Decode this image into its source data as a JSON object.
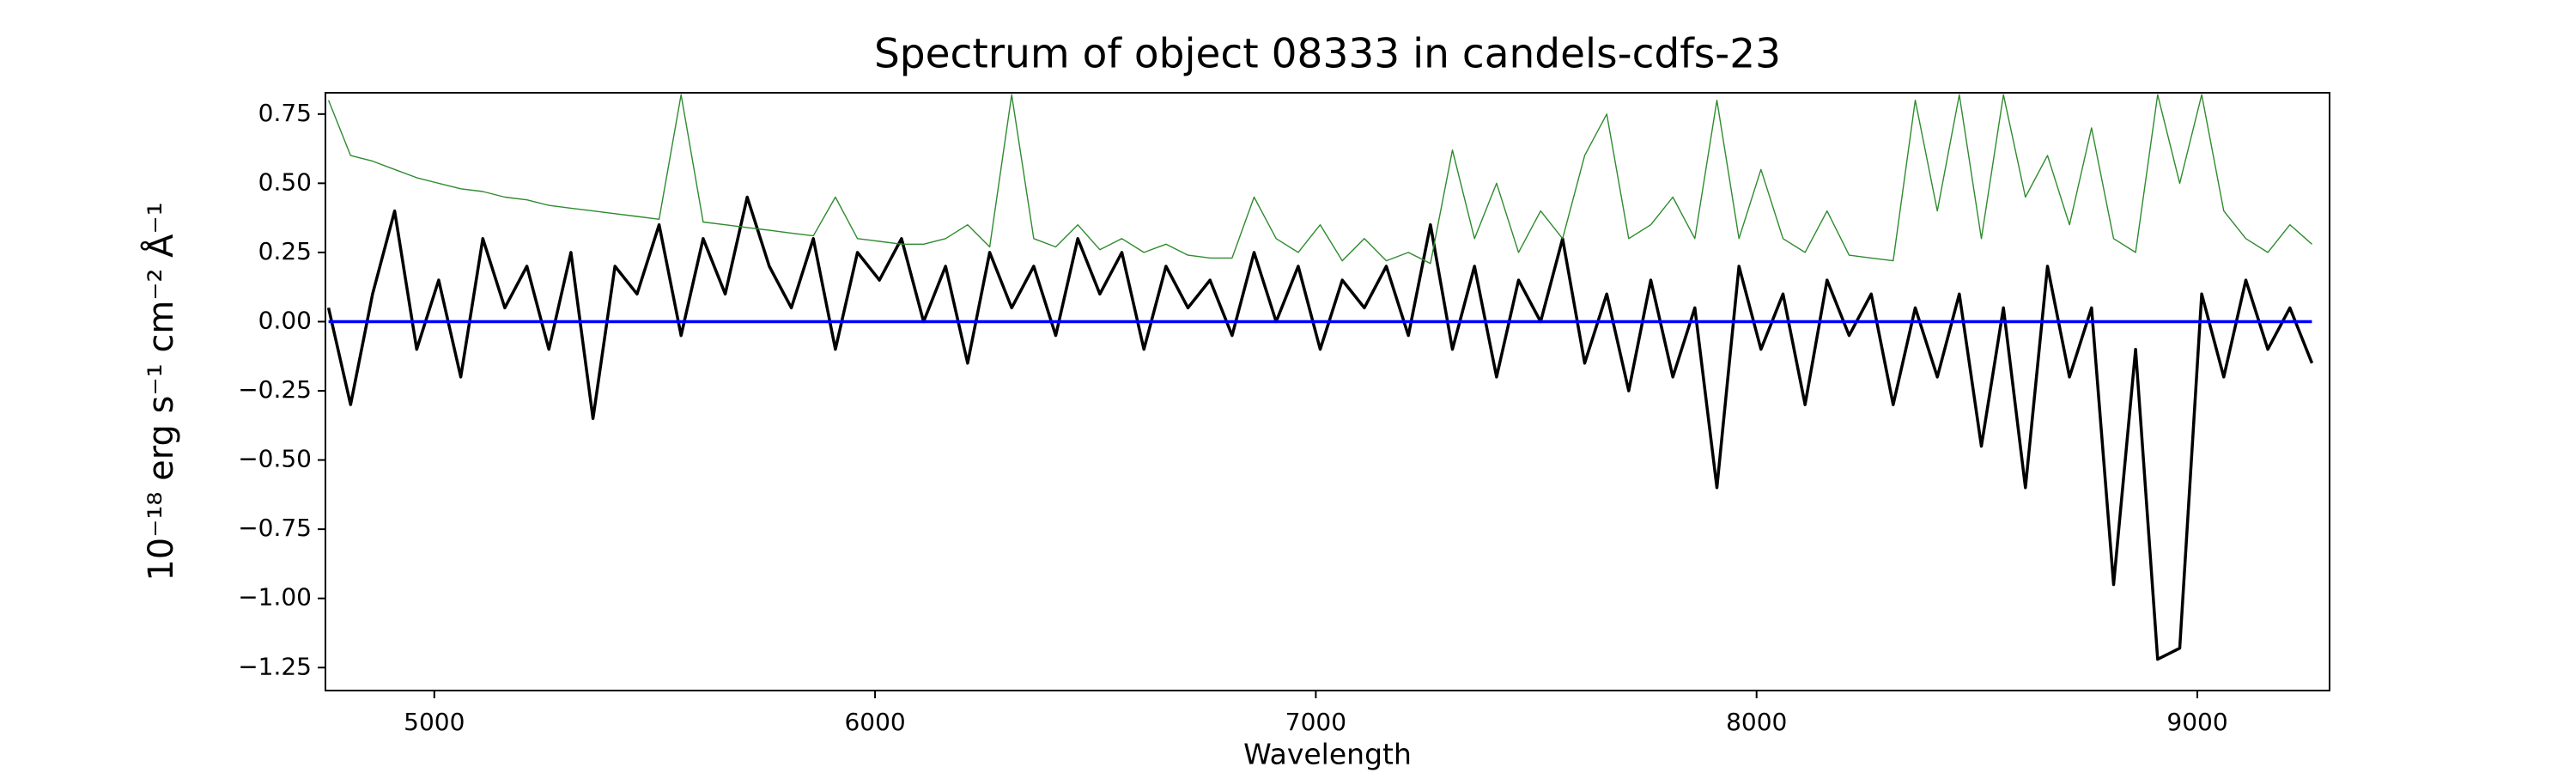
{
  "chart_data": {
    "type": "line",
    "title": "Spectrum of object 08333 in candels-cdfs-23",
    "xlabel": "Wavelength",
    "ylabel": "10⁻¹⁸ erg s⁻¹ cm⁻² Å⁻¹",
    "x": [
      4760,
      4810,
      4860,
      4910,
      4960,
      5010,
      5060,
      5110,
      5160,
      5210,
      5260,
      5310,
      5360,
      5410,
      5460,
      5510,
      5560,
      5610,
      5660,
      5710,
      5760,
      5810,
      5860,
      5910,
      5960,
      6010,
      6060,
      6110,
      6160,
      6210,
      6260,
      6310,
      6360,
      6410,
      6460,
      6510,
      6560,
      6610,
      6660,
      6710,
      6760,
      6810,
      6860,
      6910,
      6960,
      7010,
      7060,
      7110,
      7160,
      7210,
      7260,
      7310,
      7360,
      7410,
      7460,
      7510,
      7560,
      7610,
      7660,
      7710,
      7760,
      7810,
      7860,
      7910,
      7960,
      8010,
      8060,
      8110,
      8160,
      8210,
      8260,
      8310,
      8360,
      8410,
      8460,
      8510,
      8560,
      8610,
      8660,
      8710,
      8760,
      8810,
      8860,
      8910,
      8960,
      9010,
      9060,
      9110,
      9160,
      9210,
      9260
    ],
    "series": [
      {
        "color": "#000000",
        "values": [
          0.05,
          -0.3,
          0.1,
          0.4,
          -0.1,
          0.15,
          -0.2,
          0.3,
          0.05,
          0.2,
          -0.1,
          0.25,
          -0.35,
          0.2,
          0.1,
          0.35,
          -0.05,
          0.3,
          0.1,
          0.45,
          0.2,
          0.05,
          0.3,
          -0.1,
          0.25,
          0.15,
          0.3,
          0.0,
          0.2,
          -0.15,
          0.25,
          0.05,
          0.2,
          -0.05,
          0.3,
          0.1,
          0.25,
          -0.1,
          0.2,
          0.05,
          0.15,
          -0.05,
          0.25,
          0.0,
          0.2,
          -0.1,
          0.15,
          0.05,
          0.2,
          -0.05,
          0.35,
          -0.1,
          0.2,
          -0.2,
          0.15,
          0.0,
          0.3,
          -0.15,
          0.1,
          -0.25,
          0.15,
          -0.2,
          0.05,
          -0.6,
          0.2,
          -0.1,
          0.1,
          -0.3,
          0.15,
          -0.05,
          0.1,
          -0.3,
          0.05,
          -0.2,
          0.1,
          -0.45,
          0.05,
          -0.6,
          0.2,
          -0.2,
          0.05,
          -0.95,
          -0.1,
          -1.22,
          -1.18,
          0.1,
          -0.2,
          0.15,
          -0.1,
          0.05,
          -0.15
        ]
      },
      {
        "color": "#2e8b2e",
        "values": [
          0.8,
          0.6,
          0.58,
          0.55,
          0.52,
          0.5,
          0.48,
          0.47,
          0.45,
          0.44,
          0.42,
          0.41,
          0.4,
          0.39,
          0.38,
          0.37,
          0.82,
          0.36,
          0.35,
          0.34,
          0.33,
          0.32,
          0.31,
          0.45,
          0.3,
          0.29,
          0.28,
          0.28,
          0.3,
          0.35,
          0.27,
          0.82,
          0.3,
          0.27,
          0.35,
          0.26,
          0.3,
          0.25,
          0.28,
          0.24,
          0.23,
          0.23,
          0.45,
          0.3,
          0.25,
          0.35,
          0.22,
          0.3,
          0.22,
          0.25,
          0.21,
          0.62,
          0.3,
          0.5,
          0.25,
          0.4,
          0.3,
          0.6,
          0.75,
          0.3,
          0.35,
          0.45,
          0.3,
          0.8,
          0.3,
          0.55,
          0.3,
          0.25,
          0.4,
          0.24,
          0.23,
          0.22,
          0.8,
          0.4,
          0.82,
          0.3,
          0.82,
          0.45,
          0.6,
          0.35,
          0.7,
          0.3,
          0.25,
          0.82,
          0.5,
          0.82,
          0.4,
          0.3,
          0.25,
          0.35,
          0.28
        ]
      },
      {
        "color": "#0000ff",
        "values": [
          0,
          0,
          0,
          0,
          0,
          0,
          0,
          0,
          0,
          0,
          0,
          0,
          0,
          0,
          0,
          0,
          0,
          0,
          0,
          0,
          0,
          0,
          0,
          0,
          0,
          0,
          0,
          0,
          0,
          0,
          0,
          0,
          0,
          0,
          0,
          0,
          0,
          0,
          0,
          0,
          0,
          0,
          0,
          0,
          0,
          0,
          0,
          0,
          0,
          0,
          0,
          0,
          0,
          0,
          0,
          0,
          0,
          0,
          0,
          0,
          0,
          0,
          0,
          0,
          0,
          0,
          0,
          0,
          0,
          0,
          0,
          0,
          0,
          0,
          0,
          0,
          0,
          0,
          0,
          0,
          0,
          0,
          0,
          0,
          0,
          0,
          0,
          0,
          0,
          0,
          0
        ]
      }
    ],
    "xlim": [
      4753,
      9300
    ],
    "ylim": [
      -1.333,
      0.827
    ],
    "xticks": [
      5000,
      6000,
      7000,
      8000,
      9000
    ],
    "yticks": [
      {
        "value": 0.75,
        "label": "0.75"
      },
      {
        "value": 0.5,
        "label": "0.50"
      },
      {
        "value": 0.25,
        "label": "0.25"
      },
      {
        "value": 0,
        "label": "0.00"
      },
      {
        "value": -0.25,
        "label": "−0.25"
      },
      {
        "value": -0.5,
        "label": "−0.50"
      },
      {
        "value": -0.75,
        "label": "−0.75"
      },
      {
        "value": -1,
        "label": "−1.00"
      },
      {
        "value": -1.25,
        "label": "−1.25"
      }
    ]
  }
}
